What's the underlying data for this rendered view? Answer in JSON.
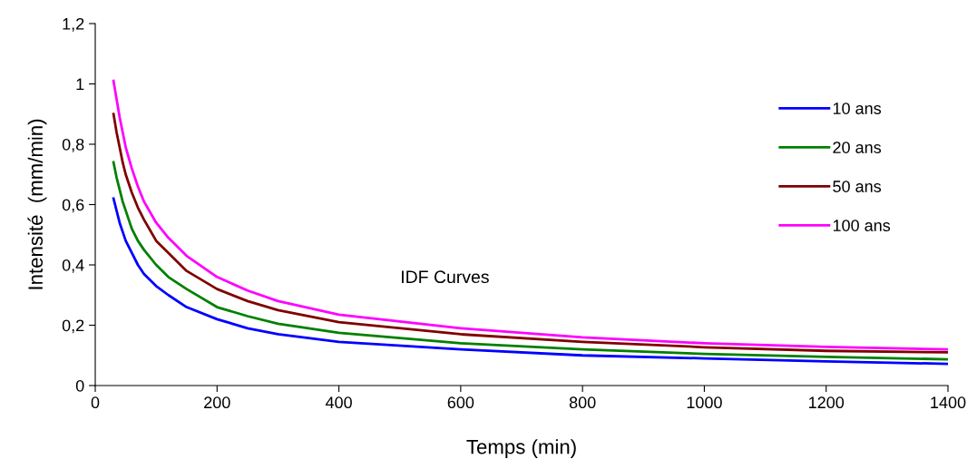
{
  "chart_data": {
    "type": "line",
    "x": [
      30,
      35,
      40,
      45,
      50,
      60,
      70,
      80,
      100,
      120,
      150,
      200,
      250,
      300,
      400,
      600,
      800,
      1000,
      1200,
      1400
    ],
    "series": [
      {
        "name": "10 ans",
        "color": "#0000ff",
        "values": [
          0.62,
          0.58,
          0.54,
          0.51,
          0.48,
          0.44,
          0.4,
          0.37,
          0.33,
          0.3,
          0.26,
          0.22,
          0.19,
          0.17,
          0.145,
          0.12,
          0.1,
          0.09,
          0.08,
          0.072
        ]
      },
      {
        "name": "20 ans",
        "color": "#008000",
        "values": [
          0.74,
          0.69,
          0.65,
          0.61,
          0.58,
          0.52,
          0.48,
          0.45,
          0.4,
          0.36,
          0.32,
          0.26,
          0.23,
          0.205,
          0.175,
          0.14,
          0.12,
          0.105,
          0.095,
          0.087
        ]
      },
      {
        "name": "50 ans",
        "color": "#800000",
        "values": [
          0.9,
          0.84,
          0.79,
          0.74,
          0.7,
          0.64,
          0.59,
          0.55,
          0.48,
          0.44,
          0.38,
          0.32,
          0.28,
          0.25,
          0.21,
          0.17,
          0.145,
          0.127,
          0.115,
          0.11
        ]
      },
      {
        "name": "100 ans",
        "color": "#ff00ff",
        "values": [
          1.01,
          0.95,
          0.89,
          0.84,
          0.79,
          0.72,
          0.66,
          0.61,
          0.54,
          0.49,
          0.43,
          0.36,
          0.315,
          0.28,
          0.235,
          0.19,
          0.16,
          0.14,
          0.128,
          0.12
        ]
      }
    ],
    "xlabel": "Temps (min)",
    "ylabel": "Intensité  (mm/min)",
    "annotations": [
      "IDF Curves"
    ],
    "xlim": [
      0,
      1400
    ],
    "xticks": [
      0,
      200,
      400,
      600,
      800,
      1000,
      1200,
      1400
    ],
    "ylim": [
      0,
      1.2
    ],
    "yticks": [
      0,
      {
        "value": 0.2,
        "label": "0,2"
      },
      {
        "value": 0.4,
        "label": "0,4"
      },
      {
        "value": 0.6,
        "label": "0,6"
      },
      {
        "value": 0.8,
        "label": "0,8"
      },
      1,
      {
        "value": 1.2,
        "label": "1,2"
      }
    ],
    "grid": false,
    "legend": "right",
    "marker": "none",
    "line_style": "solid"
  }
}
